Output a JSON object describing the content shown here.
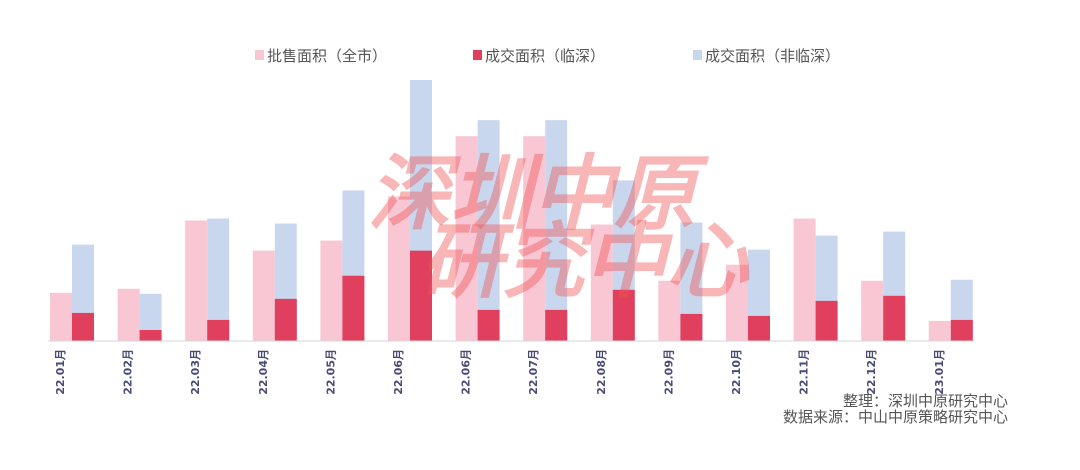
{
  "chart_data": {
    "type": "bar",
    "categories": [
      "22.01月",
      "22.02月",
      "22.03月",
      "22.04月",
      "22.05月",
      "22.06月",
      "22.06月",
      "22.07月",
      "22.08月",
      "22.09月",
      "22.10月",
      "22.11月",
      "22.12月",
      "23.01月"
    ],
    "series": [
      {
        "name": "批售面积（全市）",
        "color": "#f9c6d4",
        "values": [
          24,
          26,
          60,
          45,
          50,
          72,
          102,
          102,
          58,
          30,
          38,
          61,
          30,
          10
        ]
      },
      {
        "name": "成交面积（临深）",
        "color": "#e0405e",
        "values": [
          14,
          5.5,
          10.5,
          21,
          32.5,
          45,
          15.5,
          15.5,
          25.5,
          13.5,
          12.5,
          20,
          22.5,
          10.5
        ]
      },
      {
        "name": "成交面积（非临深）",
        "color": "#c9d7ee",
        "values": [
          48,
          23.5,
          61,
          58.5,
          75,
          130,
          110,
          110,
          80,
          59,
          45.5,
          52.5,
          54.5,
          30.5
        ]
      }
    ],
    "ylim": [
      0,
      130
    ],
    "legend": "top-center",
    "grid": false
  },
  "watermark": {
    "line1": "深圳中原",
    "line2": "研究中心"
  },
  "source": {
    "line1": "整理：深圳中原研究中心",
    "line2": "数据来源：中山中原策略研究中心"
  }
}
